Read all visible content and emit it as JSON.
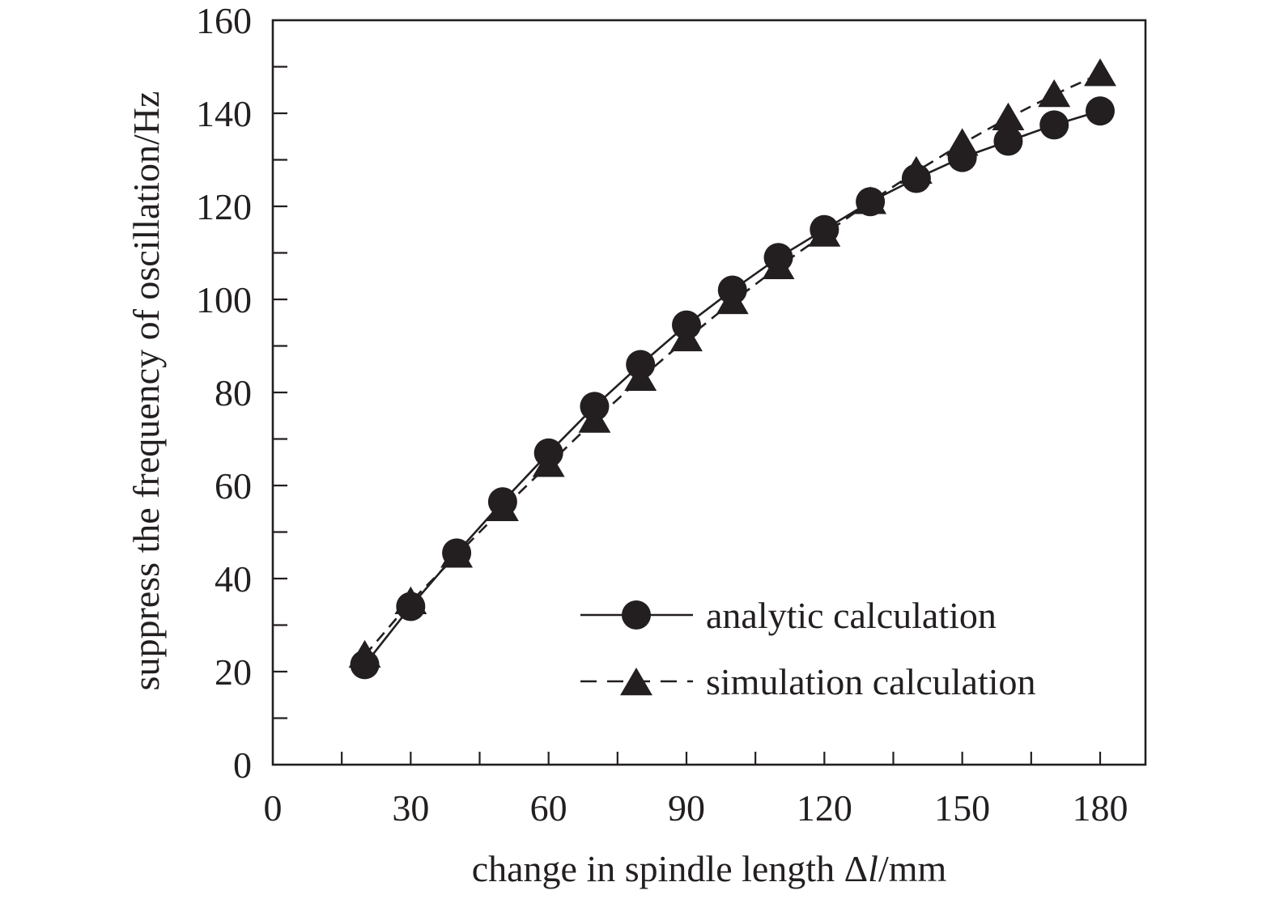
{
  "chart_data": {
    "type": "line",
    "title": "",
    "xlabel_prefix": "change in spindle length Δ",
    "xlabel_var": "l",
    "xlabel_suffix": "/mm",
    "ylabel": "suppress the frequency of oscillation/Hz",
    "xlim": [
      0,
      190
    ],
    "ylim": [
      0,
      160
    ],
    "x_ticks": [
      0,
      30,
      60,
      90,
      120,
      150,
      180
    ],
    "x_minor_ticks": [
      15,
      45,
      75,
      105,
      135,
      165
    ],
    "y_ticks": [
      0,
      20,
      40,
      60,
      80,
      100,
      120,
      140,
      160
    ],
    "y_minor_ticks": [
      10,
      30,
      50,
      70,
      90,
      110,
      130,
      150
    ],
    "x": [
      20,
      30,
      40,
      50,
      60,
      70,
      80,
      90,
      100,
      110,
      120,
      130,
      140,
      150,
      160,
      170,
      180
    ],
    "series": [
      {
        "name": "analytic calculation",
        "line_style": "solid",
        "marker": "circle",
        "values": [
          21.5,
          34,
          45.5,
          56.5,
          67,
          77,
          86,
          94.5,
          102,
          109,
          115,
          121,
          126,
          130.5,
          134,
          137.5,
          140.5
        ]
      },
      {
        "name": "simulation calculation",
        "line_style": "dashed",
        "marker": "triangle",
        "values": [
          23.5,
          35,
          45,
          55,
          64.5,
          74,
          83,
          91.5,
          99.5,
          107,
          114,
          121,
          127.5,
          133.5,
          139,
          144,
          148.5
        ]
      }
    ],
    "legend_position": "bottom-right"
  },
  "colors": {
    "ink": "#231f20",
    "background": "#ffffff"
  }
}
